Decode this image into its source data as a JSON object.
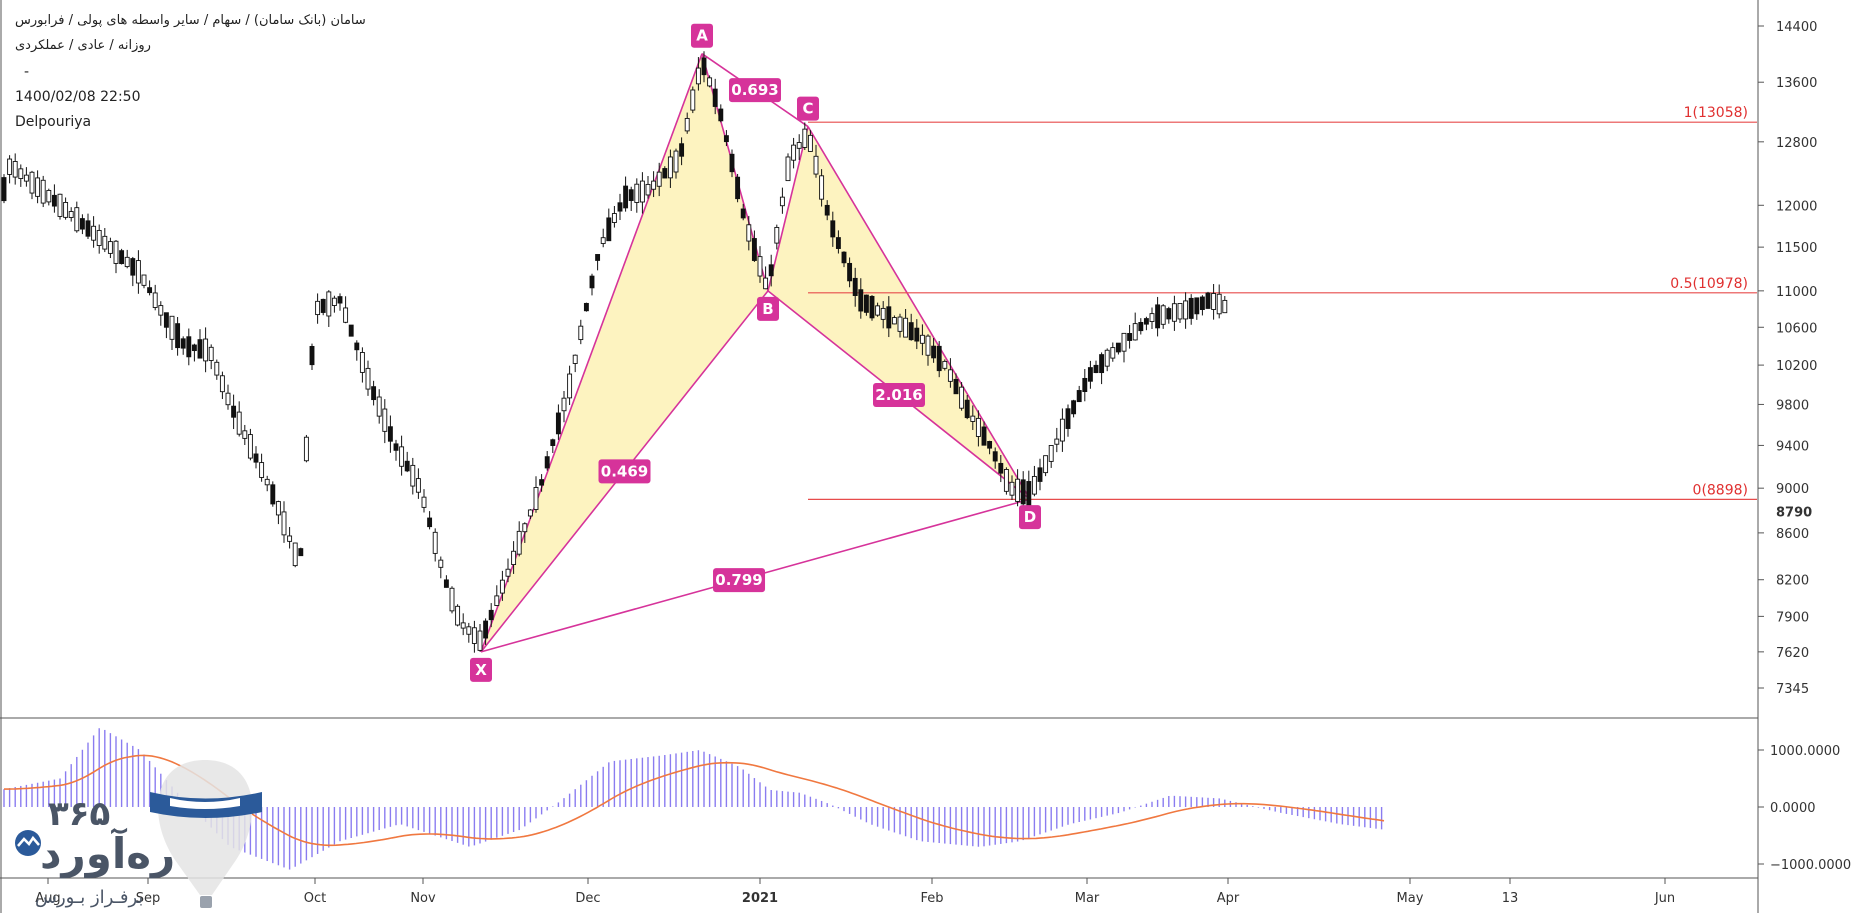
{
  "header": {
    "line1": "سامان (بانک سامان) / سهام / سایر واسطه های پولی / فرابورس",
    "line2": "روزانه / عادی / عملکردی",
    "dash": "-",
    "datetime": "1400/02/08 22:50",
    "author": "Delpouriya"
  },
  "logo": {
    "digits": "۳۶۵",
    "name": "ره‌آورد",
    "tagline": "برفـراز بـورس"
  },
  "colors": {
    "pattern_fill": "#fdf3c0",
    "pattern_line": "#d6339a",
    "fib_line": "#e74c4c",
    "histogram": "#8a7cf0",
    "signal": "#f07840"
  },
  "chart_data": {
    "type": "candlestick",
    "price_axis": {
      "ticks": [
        14400,
        13600,
        12800,
        12000,
        11500,
        11000,
        10600,
        10200,
        9800,
        9400,
        9000,
        8600,
        8200,
        7900,
        7620,
        7345
      ],
      "current_price_label": "8790",
      "scale": "log"
    },
    "time_axis": {
      "labels": [
        "Aug",
        "Sep",
        "Oct",
        "Nov",
        "Dec",
        "2021",
        "Feb",
        "Mar",
        "Apr",
        "May",
        "13",
        "Jun"
      ]
    },
    "harmonic_pattern": {
      "points": [
        {
          "label": "X",
          "price": 7620
        },
        {
          "label": "A",
          "price": 14000
        },
        {
          "label": "B",
          "price": 11000
        },
        {
          "label": "C",
          "price": 13000
        },
        {
          "label": "D",
          "price": 8900
        }
      ],
      "ratios": [
        {
          "value": "0.469",
          "leg": "XB"
        },
        {
          "value": "0.693",
          "leg": "AC"
        },
        {
          "value": "2.016",
          "leg": "BD"
        },
        {
          "value": "0.799",
          "leg": "XD"
        }
      ]
    },
    "fib_levels": [
      {
        "label": "1(13058)",
        "price": 13058
      },
      {
        "label": "0.5(10978)",
        "price": 10978
      },
      {
        "label": "0(8898)",
        "price": 8898
      }
    ],
    "indicator": {
      "type": "macd",
      "ticks": [
        "1000.0000",
        "0.0000",
        "−1000.0000"
      ],
      "tick_values": [
        1000,
        0,
        -1000
      ]
    }
  }
}
